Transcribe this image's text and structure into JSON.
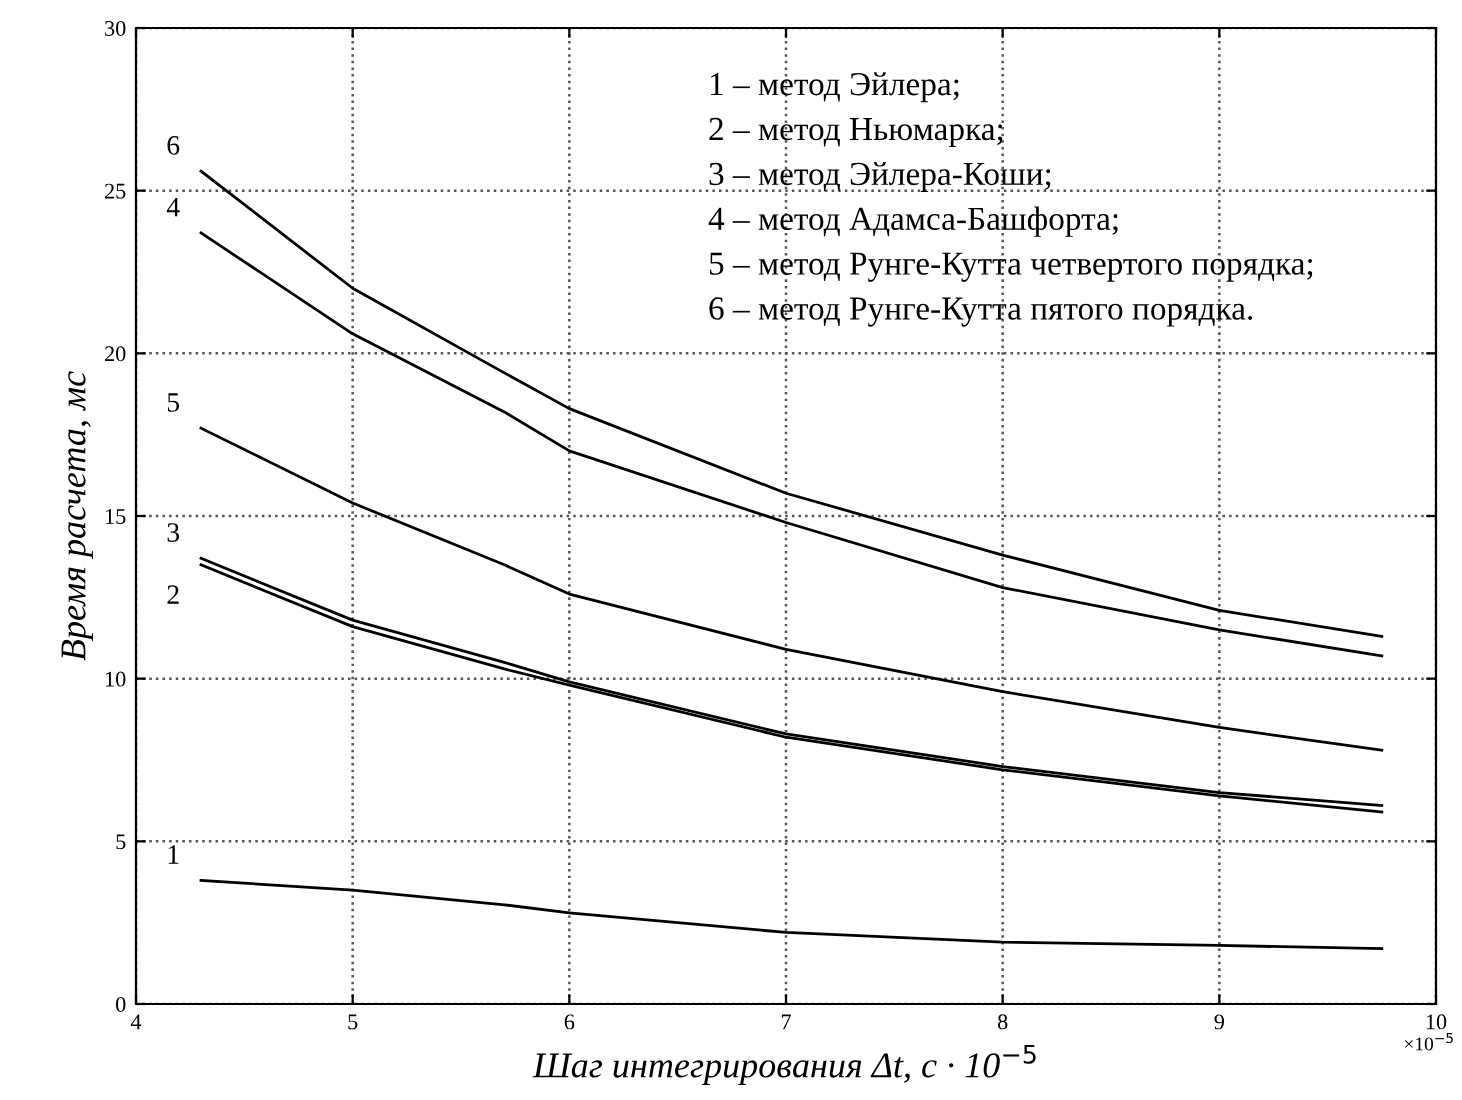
{
  "chart_data": {
    "type": "line",
    "xlabel": "Шаг интегрирования Δt, с · 10$^{−5}$",
    "ylabel": "Время расчета, мс",
    "x": [
      4.3,
      5,
      5.7,
      6,
      7,
      8,
      9,
      9.75
    ],
    "series": [
      {
        "name": "1",
        "color": "#000000",
        "values": [
          3.8,
          3.5,
          3.05,
          2.8,
          2.2,
          1.9,
          1.8,
          1.7
        ]
      },
      {
        "name": "2",
        "color": "#000000",
        "values": [
          13.5,
          11.6,
          10.3,
          9.8,
          8.2,
          7.2,
          6.4,
          5.9
        ]
      },
      {
        "name": "3",
        "color": "#000000",
        "values": [
          13.7,
          11.8,
          10.5,
          9.9,
          8.3,
          7.3,
          6.5,
          6.1
        ]
      },
      {
        "name": "4",
        "color": "#000000",
        "values": [
          23.7,
          20.6,
          18.2,
          17.0,
          14.8,
          12.8,
          11.5,
          10.7
        ]
      },
      {
        "name": "5",
        "color": "#000000",
        "values": [
          17.7,
          15.4,
          13.5,
          12.6,
          10.9,
          9.6,
          8.5,
          7.8
        ]
      },
      {
        "name": "6",
        "color": "#000000",
        "values": [
          25.6,
          22.0,
          19.4,
          18.3,
          15.7,
          13.8,
          12.1,
          11.3
        ]
      }
    ],
    "annotations": [
      "1 – метод Эйлера;",
      "2 – метод Ньюмарка;",
      "3 – метод Эйлера-Коши;",
      "4 – метод Адамса-Башфорта;",
      "5 – метод Рунге-Кутта четвертого порядка;",
      "6 – метод Рунге-Кутта пятого порядка.",
      "×10$^{−5}$"
    ],
    "xlim": [
      4,
      10
    ],
    "xticks": [
      4,
      5,
      6,
      7,
      8,
      9,
      10
    ],
    "ylim": [
      0,
      30
    ],
    "yticks": [
      0,
      5,
      10,
      15,
      20,
      25,
      30
    ],
    "grid": true,
    "marker": "none",
    "line_style": "solid",
    "legend": false
  }
}
